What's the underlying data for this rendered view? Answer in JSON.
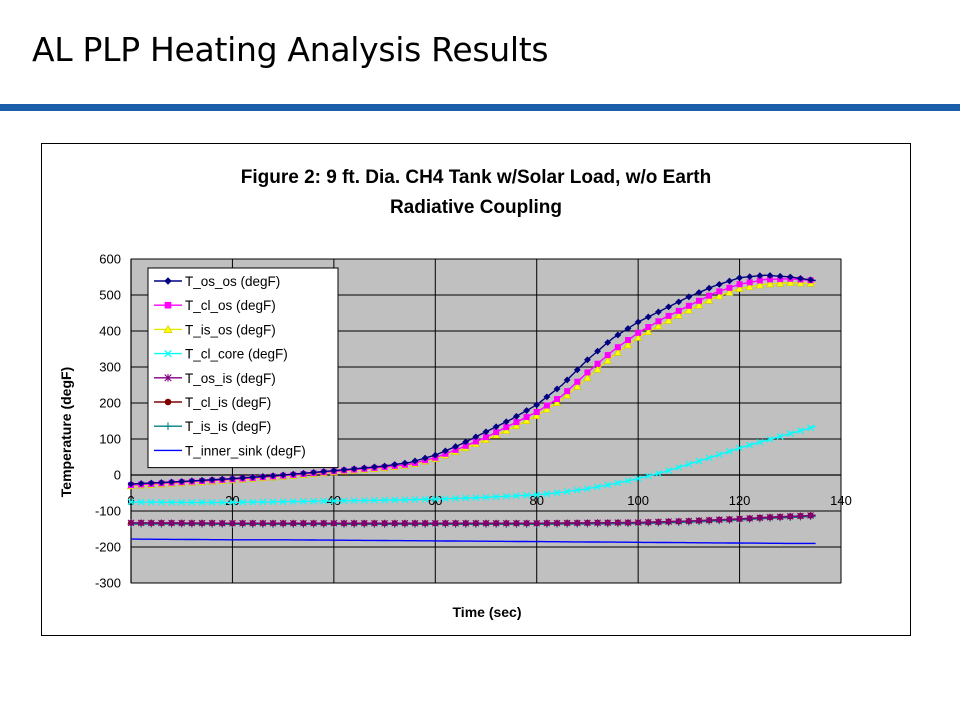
{
  "slide": {
    "title": "AL PLP Heating Analysis Results",
    "accent_color": "#1b5faa"
  },
  "chart_data": {
    "type": "line",
    "title_lines": [
      "Figure 2: 9 ft. Dia. CH4 Tank w/Solar Load, w/o Earth",
      "Radiative Coupling"
    ],
    "xlabel": "Time (sec)",
    "ylabel": "Temperature (degF)",
    "xlim": [
      0,
      140
    ],
    "ylim": [
      -300,
      600
    ],
    "xticks": [
      0,
      20,
      40,
      60,
      80,
      100,
      120,
      140
    ],
    "yticks": [
      -300,
      -200,
      -100,
      0,
      100,
      200,
      300,
      400,
      500,
      600
    ],
    "grid": true,
    "plot_background": "#c0c0c0",
    "legend_position": "top-left",
    "series": [
      {
        "name": "T_os_os (degF)",
        "color": "#000080",
        "marker": "diamond",
        "x": [
          0,
          10,
          20,
          30,
          40,
          50,
          55,
          60,
          65,
          70,
          75,
          80,
          85,
          90,
          95,
          100,
          105,
          110,
          115,
          120,
          125,
          130,
          135
        ],
        "y": [
          -25,
          -18,
          -10,
          0,
          12,
          25,
          35,
          55,
          85,
          120,
          155,
          195,
          250,
          320,
          380,
          425,
          460,
          495,
          525,
          548,
          555,
          550,
          540
        ]
      },
      {
        "name": "T_cl_os (degF)",
        "color": "#ff00ff",
        "marker": "square",
        "x": [
          0,
          10,
          20,
          30,
          40,
          50,
          55,
          60,
          65,
          70,
          75,
          80,
          85,
          90,
          95,
          100,
          105,
          110,
          115,
          120,
          125,
          130,
          135
        ],
        "y": [
          -28,
          -20,
          -12,
          -2,
          10,
          22,
          30,
          48,
          75,
          105,
          140,
          175,
          220,
          285,
          345,
          395,
          435,
          470,
          505,
          530,
          543,
          545,
          540
        ]
      },
      {
        "name": "T_is_os (degF)",
        "color": "#ffff00",
        "marker": "triangle",
        "x": [
          0,
          10,
          20,
          30,
          40,
          50,
          55,
          60,
          65,
          70,
          75,
          80,
          85,
          90,
          95,
          100,
          105,
          110,
          115,
          120,
          125,
          130,
          135
        ],
        "y": [
          -30,
          -22,
          -14,
          -4,
          8,
          20,
          28,
          45,
          70,
          98,
          130,
          165,
          210,
          270,
          330,
          382,
          422,
          458,
          492,
          518,
          530,
          534,
          532
        ]
      },
      {
        "name": "T_cl_core (degF)",
        "color": "#00ffff",
        "marker": "x",
        "x": [
          0,
          10,
          20,
          30,
          40,
          50,
          60,
          70,
          80,
          85,
          90,
          95,
          100,
          105,
          110,
          115,
          120,
          125,
          130,
          135
        ],
        "y": [
          -75,
          -76,
          -76,
          -74,
          -72,
          -70,
          -67,
          -62,
          -55,
          -48,
          -38,
          -25,
          -10,
          8,
          30,
          52,
          75,
          95,
          115,
          135
        ]
      },
      {
        "name": "T_os_is (degF)",
        "color": "#800080",
        "marker": "star",
        "x": [
          0,
          20,
          40,
          60,
          80,
          100,
          110,
          120,
          125,
          130,
          135
        ],
        "y": [
          -133,
          -134,
          -134,
          -134,
          -134,
          -132,
          -128,
          -122,
          -118,
          -115,
          -112
        ]
      },
      {
        "name": "T_cl_is (degF)",
        "color": "#800000",
        "marker": "circle",
        "x": [
          0,
          20,
          40,
          60,
          80,
          100,
          110,
          120,
          125,
          130,
          135
        ],
        "y": [
          -133,
          -134,
          -134,
          -134,
          -134,
          -132,
          -128,
          -122,
          -118,
          -115,
          -112
        ]
      },
      {
        "name": "T_is_is (degF)",
        "color": "#008080",
        "marker": "plus",
        "x": [
          0,
          20,
          40,
          60,
          80,
          100,
          110,
          120,
          125,
          130,
          135
        ],
        "y": [
          -136,
          -137,
          -137,
          -137,
          -137,
          -135,
          -131,
          -125,
          -121,
          -118,
          -115
        ]
      },
      {
        "name": "T_inner_sink (degF)",
        "color": "#0000ff",
        "marker": "dash",
        "x": [
          0,
          10,
          20,
          30,
          40,
          50,
          60,
          70,
          80,
          90,
          100,
          110,
          120,
          130,
          135
        ],
        "y": [
          -178,
          -179,
          -180,
          -180,
          -181,
          -182,
          -183,
          -184,
          -185,
          -186,
          -187,
          -188,
          -189,
          -190,
          -190
        ]
      }
    ]
  }
}
